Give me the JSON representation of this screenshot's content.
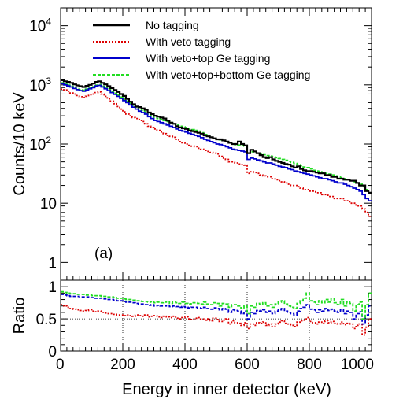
{
  "chart_data": [
    {
      "type": "line",
      "subtype": "step-histogram",
      "panel_label": "(a)",
      "xlabel": "Energy in inner detector (keV)",
      "ylabel": "Counts/10 keV",
      "xlim": [
        0,
        1000
      ],
      "ylim": [
        0.5,
        20000
      ],
      "y_scale": "log",
      "y_ticks": [
        1,
        10,
        100,
        1000,
        10000
      ],
      "y_tick_labels": [
        {
          "base": "1",
          "exp": ""
        },
        {
          "base": "10",
          "exp": ""
        },
        {
          "base": "10",
          "exp": "2"
        },
        {
          "base": "10",
          "exp": "3"
        },
        {
          "base": "10",
          "exp": "4"
        }
      ],
      "x_ticks": [
        0,
        200,
        400,
        600,
        800,
        1000
      ],
      "bin_width": 10,
      "legend_placement": "top-center",
      "series": [
        {
          "name": "No tagging",
          "color": "#000000",
          "style": "solid",
          "values": [
            1200,
            1150,
            1120,
            1080,
            1020,
            980,
            950,
            920,
            960,
            1000,
            1050,
            1120,
            1150,
            1080,
            1020,
            950,
            880,
            820,
            760,
            700,
            650,
            580,
            520,
            470,
            430,
            420,
            400,
            380,
            340,
            320,
            300,
            290,
            280,
            270,
            250,
            230,
            220,
            200,
            190,
            185,
            180,
            170,
            165,
            160,
            155,
            150,
            140,
            135,
            130,
            125,
            120,
            120,
            115,
            110,
            105,
            100,
            100,
            110,
            100,
            95,
            70,
            80,
            75,
            70,
            65,
            60,
            58,
            60,
            55,
            52,
            50,
            48,
            46,
            45,
            42,
            40,
            42,
            38,
            36,
            35,
            35,
            34,
            33,
            32,
            32,
            30,
            30,
            28,
            28,
            26,
            26,
            25,
            25,
            24,
            24,
            22,
            20,
            20,
            16,
            15
          ]
        },
        {
          "name": "With veto tagging",
          "color": "#dd0000",
          "style": "dotted",
          "values": [
            850,
            820,
            780,
            730,
            700,
            660,
            630,
            610,
            640,
            680,
            700,
            740,
            760,
            700,
            640,
            580,
            530,
            480,
            430,
            390,
            350,
            320,
            300,
            280,
            270,
            260,
            240,
            220,
            200,
            190,
            180,
            170,
            160,
            150,
            140,
            135,
            130,
            120,
            110,
            105,
            100,
            95,
            92,
            90,
            85,
            82,
            78,
            75,
            72,
            70,
            68,
            62,
            58,
            55,
            50,
            50,
            48,
            46,
            45,
            44,
            32,
            34,
            33,
            32,
            30,
            29,
            28,
            28,
            26,
            25,
            24,
            23,
            22,
            21,
            20,
            20,
            19,
            18,
            17,
            17,
            16,
            16,
            15,
            15,
            14,
            14,
            13,
            13,
            12,
            12,
            12,
            11,
            11,
            10,
            10,
            9,
            9,
            8,
            7,
            6
          ]
        },
        {
          "name": "With veto+top Ge tagging",
          "color": "#0000cc",
          "style": "solid",
          "values": [
            1050,
            1000,
            960,
            920,
            870,
            830,
            800,
            780,
            820,
            860,
            900,
            960,
            980,
            920,
            860,
            800,
            740,
            690,
            640,
            590,
            540,
            500,
            460,
            420,
            390,
            360,
            340,
            320,
            290,
            270,
            250,
            240,
            230,
            220,
            210,
            200,
            190,
            180,
            170,
            165,
            160,
            152,
            146,
            140,
            135,
            128,
            120,
            115,
            110,
            105,
            100,
            98,
            94,
            90,
            86,
            82,
            80,
            78,
            76,
            74,
            55,
            58,
            56,
            54,
            52,
            50,
            48,
            48,
            46,
            44,
            42,
            41,
            40,
            38,
            37,
            35,
            34,
            33,
            32,
            31,
            30,
            29,
            28,
            27,
            26,
            26,
            25,
            24,
            23,
            22,
            22,
            21,
            20,
            19,
            18,
            17,
            16,
            14,
            12,
            11
          ]
        },
        {
          "name": "With veto+top+bottom Ge tagging",
          "color": "#22dd22",
          "style": "dashed",
          "values": [
            1080,
            1030,
            990,
            950,
            900,
            860,
            830,
            810,
            850,
            890,
            930,
            990,
            1010,
            950,
            890,
            830,
            770,
            720,
            670,
            620,
            570,
            530,
            490,
            450,
            420,
            390,
            370,
            350,
            320,
            300,
            280,
            270,
            260,
            250,
            240,
            230,
            220,
            210,
            200,
            195,
            190,
            180,
            175,
            170,
            165,
            155,
            145,
            138,
            130,
            125,
            120,
            118,
            115,
            110,
            105,
            100,
            98,
            96,
            94,
            92,
            70,
            74,
            72,
            70,
            68,
            66,
            64,
            63,
            61,
            59,
            57,
            55,
            53,
            51,
            49,
            47,
            45,
            43,
            41,
            40,
            38,
            36,
            35,
            34,
            33,
            32,
            31,
            30,
            29,
            28,
            27,
            26,
            25,
            24,
            23,
            22,
            21,
            19,
            17,
            15
          ]
        }
      ]
    },
    {
      "type": "line",
      "subtype": "step-histogram",
      "ylabel": "Ratio",
      "xlabel": "Energy in inner detector (keV)",
      "xlim": [
        0,
        1000
      ],
      "ylim": [
        0,
        1.1
      ],
      "y_ticks": [
        0,
        0.5,
        1
      ],
      "y_tick_labels": [
        "0",
        "0.5",
        "1"
      ],
      "x_ticks": [
        0,
        200,
        400,
        600,
        800,
        1000
      ],
      "x_tick_labels": [
        "0",
        "200",
        "400",
        "600",
        "800",
        "1000"
      ],
      "grid": true,
      "grid_y": [
        0.5
      ],
      "bin_width": 10,
      "series": [
        {
          "color": "#dd0000",
          "style": "dotted",
          "values": [
            0.72,
            0.7,
            0.68,
            0.66,
            0.65,
            0.64,
            0.63,
            0.62,
            0.63,
            0.64,
            0.62,
            0.61,
            0.62,
            0.6,
            0.59,
            0.58,
            0.58,
            0.57,
            0.56,
            0.56,
            0.55,
            0.56,
            0.55,
            0.54,
            0.56,
            0.55,
            0.54,
            0.56,
            0.53,
            0.54,
            0.55,
            0.53,
            0.52,
            0.54,
            0.53,
            0.52,
            0.54,
            0.51,
            0.5,
            0.52,
            0.53,
            0.5,
            0.49,
            0.51,
            0.52,
            0.5,
            0.48,
            0.5,
            0.47,
            0.51,
            0.49,
            0.46,
            0.48,
            0.5,
            0.42,
            0.47,
            0.44,
            0.43,
            0.4,
            0.44,
            0.35,
            0.42,
            0.4,
            0.44,
            0.43,
            0.45,
            0.4,
            0.42,
            0.38,
            0.42,
            0.45,
            0.47,
            0.43,
            0.42,
            0.4,
            0.38,
            0.45,
            0.47,
            0.48,
            0.52,
            0.46,
            0.44,
            0.42,
            0.45,
            0.43,
            0.47,
            0.44,
            0.46,
            0.43,
            0.42,
            0.45,
            0.41,
            0.43,
            0.42,
            0.35,
            0.4,
            0.42,
            0.25,
            0.37,
            0.5
          ]
        },
        {
          "color": "#0000cc",
          "style": "dashed",
          "values": [
            0.88,
            0.87,
            0.86,
            0.85,
            0.85,
            0.85,
            0.84,
            0.84,
            0.84,
            0.83,
            0.83,
            0.82,
            0.82,
            0.82,
            0.81,
            0.8,
            0.8,
            0.79,
            0.78,
            0.78,
            0.77,
            0.76,
            0.76,
            0.75,
            0.74,
            0.73,
            0.73,
            0.72,
            0.71,
            0.72,
            0.7,
            0.71,
            0.7,
            0.7,
            0.71,
            0.69,
            0.7,
            0.69,
            0.68,
            0.69,
            0.68,
            0.67,
            0.68,
            0.68,
            0.67,
            0.66,
            0.68,
            0.66,
            0.65,
            0.67,
            0.66,
            0.64,
            0.66,
            0.65,
            0.6,
            0.64,
            0.63,
            0.62,
            0.58,
            0.62,
            0.5,
            0.6,
            0.58,
            0.63,
            0.62,
            0.64,
            0.6,
            0.62,
            0.58,
            0.62,
            0.64,
            0.66,
            0.62,
            0.6,
            0.58,
            0.56,
            0.62,
            0.66,
            0.68,
            0.72,
            0.65,
            0.64,
            0.6,
            0.64,
            0.62,
            0.66,
            0.63,
            0.65,
            0.62,
            0.6,
            0.64,
            0.58,
            0.62,
            0.6,
            0.5,
            0.58,
            0.61,
            0.42,
            0.56,
            0.7
          ]
        },
        {
          "color": "#22dd22",
          "style": "dashed",
          "values": [
            0.92,
            0.91,
            0.9,
            0.89,
            0.89,
            0.88,
            0.88,
            0.88,
            0.87,
            0.87,
            0.86,
            0.86,
            0.86,
            0.85,
            0.85,
            0.84,
            0.84,
            0.83,
            0.82,
            0.82,
            0.81,
            0.8,
            0.8,
            0.79,
            0.78,
            0.78,
            0.77,
            0.77,
            0.76,
            0.77,
            0.75,
            0.76,
            0.75,
            0.76,
            0.77,
            0.74,
            0.76,
            0.75,
            0.74,
            0.76,
            0.74,
            0.73,
            0.75,
            0.75,
            0.74,
            0.73,
            0.76,
            0.73,
            0.72,
            0.75,
            0.74,
            0.7,
            0.74,
            0.73,
            0.68,
            0.72,
            0.72,
            0.7,
            0.66,
            0.7,
            0.58,
            0.7,
            0.68,
            0.74,
            0.72,
            0.75,
            0.7,
            0.72,
            0.68,
            0.73,
            0.76,
            0.78,
            0.73,
            0.7,
            0.68,
            0.66,
            0.74,
            0.78,
            0.82,
            0.9,
            0.78,
            0.76,
            0.72,
            0.78,
            0.75,
            0.8,
            0.76,
            0.82,
            0.75,
            0.72,
            0.8,
            0.7,
            0.76,
            0.74,
            0.62,
            0.72,
            0.76,
            0.5,
            0.72,
            0.9
          ]
        }
      ]
    }
  ]
}
